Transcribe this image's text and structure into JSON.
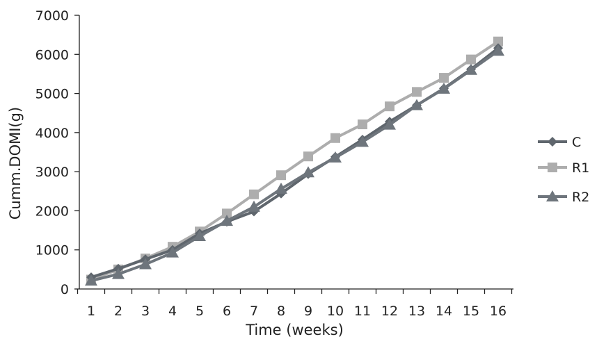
{
  "chart_data": {
    "type": "line",
    "title": "",
    "xlabel": "Time (weeks)",
    "ylabel": "Cumm.DOMI(g)",
    "x": [
      "1",
      "2",
      "3",
      "4",
      "5",
      "6",
      "7",
      "8",
      "9",
      "10",
      "11",
      "12",
      "13",
      "14",
      "15",
      "16"
    ],
    "y_ticks": [
      "0",
      "1000",
      "2000",
      "3000",
      "4000",
      "5000",
      "6000",
      "7000"
    ],
    "ylim": [
      0,
      7000
    ],
    "grid": false,
    "legend_position": "right",
    "series": [
      {
        "name": "C",
        "marker": "diamond",
        "color": "#5f666d",
        "values": [
          300,
          520,
          760,
          1000,
          1420,
          1720,
          1980,
          2440,
          2940,
          3380,
          3820,
          4280,
          4700,
          5130,
          5620,
          6160
        ]
      },
      {
        "name": "R1",
        "marker": "square",
        "color": "#adadad",
        "values": [
          240,
          500,
          780,
          1080,
          1470,
          1930,
          2420,
          2910,
          3390,
          3860,
          4210,
          4670,
          5040,
          5400,
          5870,
          6330
        ]
      },
      {
        "name": "R2",
        "marker": "triangle",
        "color": "#6e757c",
        "values": [
          210,
          380,
          630,
          930,
          1350,
          1740,
          2100,
          2560,
          2980,
          3360,
          3760,
          4200,
          4700,
          5120,
          5600,
          6090
        ]
      }
    ]
  }
}
